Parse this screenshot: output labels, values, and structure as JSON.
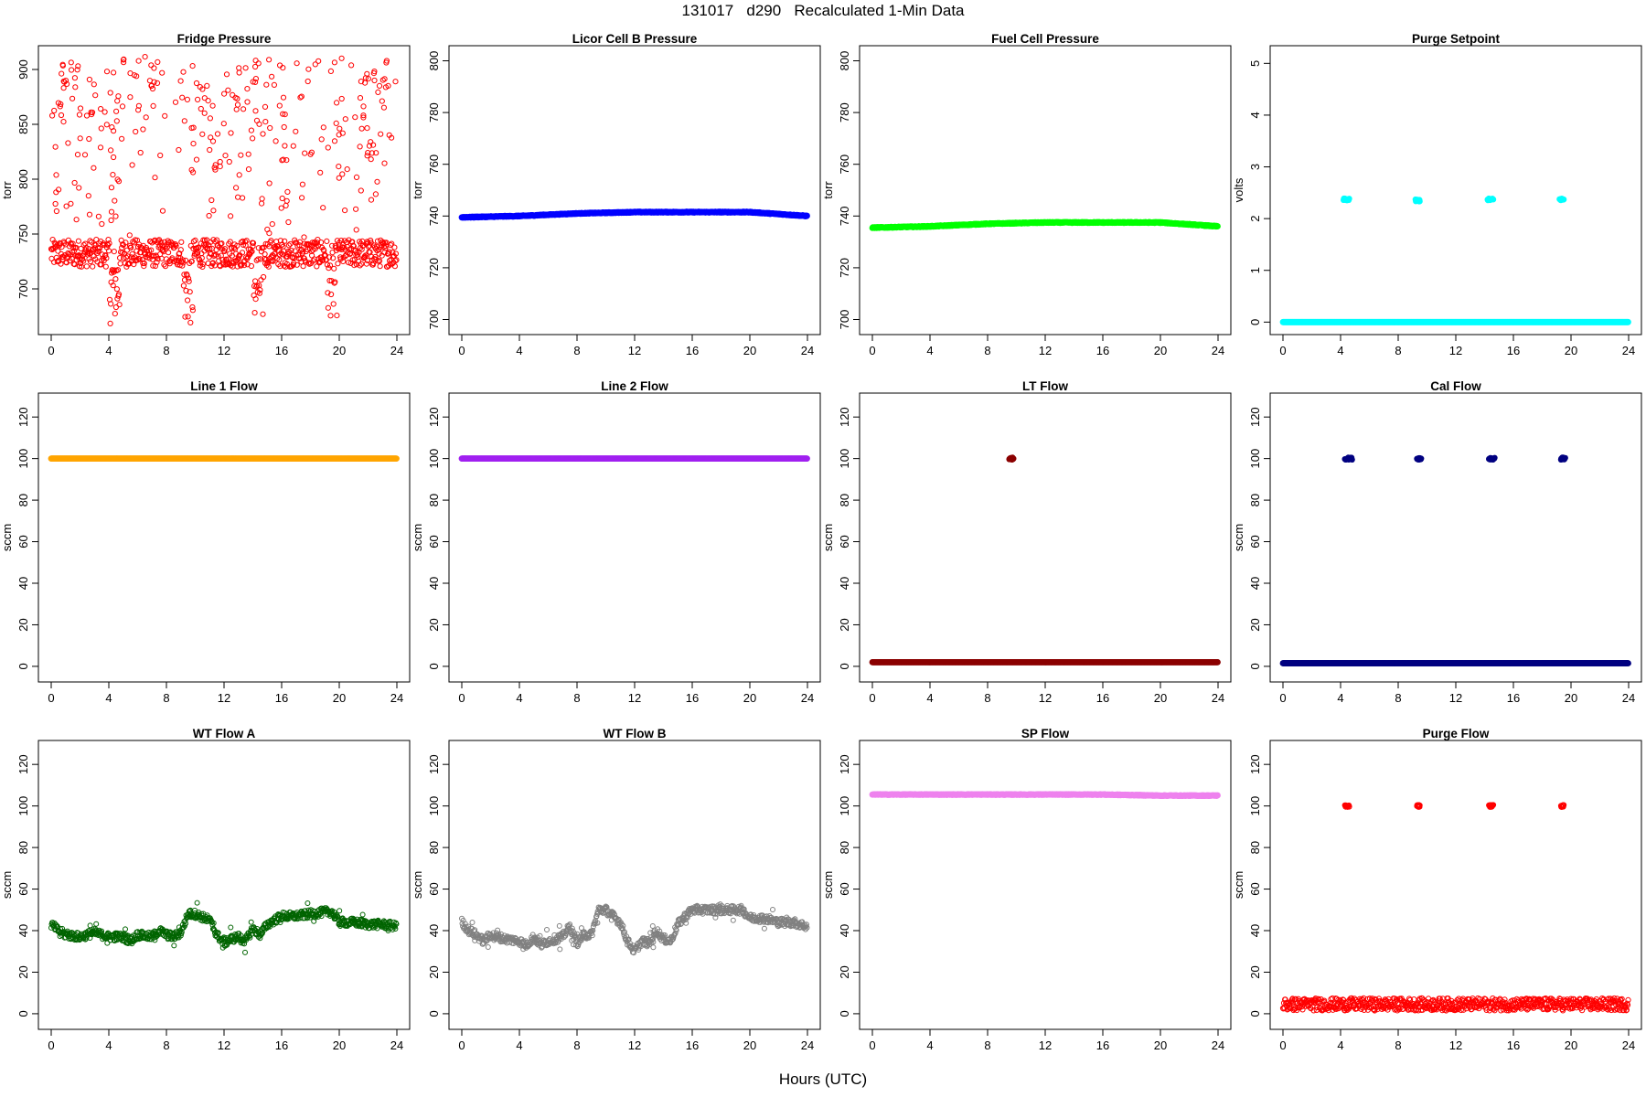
{
  "title": "131017   d290   Recalculated 1-Min Data",
  "xlabel": "Hours (UTC)",
  "chart_data": [
    {
      "type": "scatter",
      "title": "Fridge Pressure",
      "ylabel": "torr",
      "color": "#ff0000",
      "filled": false,
      "xlim": [
        0,
        24
      ],
      "ylim": [
        665,
        915
      ],
      "yticks": [
        700,
        750,
        800,
        850,
        900
      ],
      "xticks": [
        0,
        4,
        8,
        12,
        16,
        20,
        24
      ],
      "description": "cluster 715-745 with dips to ~670 near hours 4.4, 9.5, 14.4, 19.5; scattered points 745-912",
      "series": [
        {
          "baseline_range": [
            715,
            745
          ],
          "dips": [
            {
              "x": 4.4,
              "min": 668
            },
            {
              "x": 9.5,
              "min": 666
            },
            {
              "x": 14.4,
              "min": 668
            },
            {
              "x": 19.5,
              "min": 675
            }
          ],
          "scatter_range": [
            745,
            912
          ]
        }
      ]
    },
    {
      "type": "scatter",
      "title": "Licor Cell B Pressure",
      "ylabel": "torr",
      "color": "#0000ff",
      "filled": true,
      "xlim": [
        0,
        24
      ],
      "ylim": [
        697,
        803
      ],
      "yticks": [
        700,
        720,
        740,
        760,
        780,
        800
      ],
      "xticks": [
        0,
        4,
        8,
        12,
        16,
        20,
        24
      ],
      "series": [
        {
          "x": [
            0,
            4,
            8,
            12,
            16,
            20,
            24
          ],
          "y": [
            739.5,
            740.0,
            741.0,
            741.5,
            741.5,
            741.5,
            740.0
          ]
        }
      ]
    },
    {
      "type": "scatter",
      "title": "Fuel Cell Pressure",
      "ylabel": "torr",
      "color": "#00ff00",
      "filled": true,
      "xlim": [
        0,
        24
      ],
      "ylim": [
        697,
        803
      ],
      "yticks": [
        700,
        720,
        740,
        760,
        780,
        800
      ],
      "xticks": [
        0,
        4,
        8,
        12,
        16,
        20,
        24
      ],
      "series": [
        {
          "x": [
            0,
            4,
            8,
            12,
            16,
            20,
            24
          ],
          "y": [
            735.5,
            736.0,
            737.0,
            737.5,
            737.5,
            737.5,
            736.0
          ]
        }
      ]
    },
    {
      "type": "scatter",
      "title": "Purge Setpoint",
      "ylabel": "volts",
      "color": "#00ffff",
      "filled": true,
      "xlim": [
        0,
        24
      ],
      "ylim": [
        -0.1,
        5.2
      ],
      "yticks": [
        0,
        1,
        2,
        3,
        4,
        5
      ],
      "xticks": [
        0,
        4,
        8,
        12,
        16,
        20,
        24
      ],
      "series": [
        {
          "baseline": 0,
          "spikes": [
            {
              "x0": 4.2,
              "x1": 4.6,
              "y": 2.37
            },
            {
              "x0": 9.2,
              "x1": 9.5,
              "y": 2.35
            },
            {
              "x0": 14.2,
              "x1": 14.6,
              "y": 2.37
            },
            {
              "x0": 19.2,
              "x1": 19.5,
              "y": 2.37
            }
          ]
        }
      ]
    },
    {
      "type": "scatter",
      "title": "Line 1 Flow",
      "ylabel": "sccm",
      "color": "#ffa500",
      "filled": true,
      "xlim": [
        0,
        24
      ],
      "ylim": [
        -4,
        128
      ],
      "yticks": [
        0,
        20,
        40,
        60,
        80,
        100,
        120
      ],
      "xticks": [
        0,
        4,
        8,
        12,
        16,
        20,
        24
      ],
      "series": [
        {
          "baseline": 100
        }
      ]
    },
    {
      "type": "scatter",
      "title": "Line 2 Flow",
      "ylabel": "sccm",
      "color": "#a020f0",
      "filled": true,
      "xlim": [
        0,
        24
      ],
      "ylim": [
        -4,
        128
      ],
      "yticks": [
        0,
        20,
        40,
        60,
        80,
        100,
        120
      ],
      "xticks": [
        0,
        4,
        8,
        12,
        16,
        20,
        24
      ],
      "series": [
        {
          "baseline": 100
        }
      ]
    },
    {
      "type": "scatter",
      "title": "LT Flow",
      "ylabel": "sccm",
      "color": "#8b0000",
      "filled": true,
      "xlim": [
        0,
        24
      ],
      "ylim": [
        -4,
        128
      ],
      "yticks": [
        0,
        20,
        40,
        60,
        80,
        100,
        120
      ],
      "xticks": [
        0,
        4,
        8,
        12,
        16,
        20,
        24
      ],
      "series": [
        {
          "baseline": 2,
          "spikes": [
            {
              "x0": 9.5,
              "x1": 9.8,
              "y": 100
            }
          ]
        }
      ]
    },
    {
      "type": "scatter",
      "title": "Cal Flow",
      "ylabel": "sccm",
      "color": "#000080",
      "filled": true,
      "xlim": [
        0,
        24
      ],
      "ylim": [
        -4,
        128
      ],
      "yticks": [
        0,
        20,
        40,
        60,
        80,
        100,
        120
      ],
      "xticks": [
        0,
        4,
        8,
        12,
        16,
        20,
        24
      ],
      "series": [
        {
          "baseline": 1.5,
          "spikes": [
            {
              "x0": 4.3,
              "x1": 4.8,
              "y": 100
            },
            {
              "x0": 9.3,
              "x1": 9.6,
              "y": 100
            },
            {
              "x0": 14.3,
              "x1": 14.7,
              "y": 100
            },
            {
              "x0": 19.3,
              "x1": 19.6,
              "y": 100
            }
          ]
        }
      ]
    },
    {
      "type": "scatter",
      "title": "WT Flow A",
      "ylabel": "sccm",
      "color": "#006400",
      "filled": false,
      "xlim": [
        0,
        24
      ],
      "ylim": [
        -4,
        128
      ],
      "yticks": [
        0,
        20,
        40,
        60,
        80,
        100,
        120
      ],
      "xticks": [
        0,
        4,
        8,
        12,
        16,
        20,
        24
      ],
      "series": [
        {
          "x": [
            0,
            0.5,
            1,
            2,
            3,
            4,
            5,
            5.5,
            6,
            7,
            7.5,
            8,
            8.5,
            9,
            9.5,
            10,
            11,
            11.5,
            12,
            12.5,
            13,
            13.5,
            14,
            14.5,
            15,
            15.5,
            16,
            17,
            18,
            19,
            19.5,
            20,
            21,
            22,
            23,
            24
          ],
          "y": [
            43,
            40,
            38,
            37,
            39,
            37,
            37,
            35,
            38,
            37,
            40,
            38,
            37,
            39,
            48,
            48,
            45,
            38,
            34,
            36,
            37,
            35,
            41,
            38,
            43,
            45,
            47,
            47,
            48,
            49,
            49,
            44,
            44,
            43,
            43,
            42
          ]
        }
      ]
    },
    {
      "type": "scatter",
      "title": "WT Flow B",
      "ylabel": "sccm",
      "color": "#808080",
      "filled": false,
      "xlim": [
        0,
        24
      ],
      "ylim": [
        -4,
        128
      ],
      "yticks": [
        0,
        20,
        40,
        60,
        80,
        100,
        120
      ],
      "xticks": [
        0,
        4,
        8,
        12,
        16,
        20,
        24
      ],
      "series": [
        {
          "x": [
            0,
            0.5,
            1,
            1.5,
            2,
            3,
            4,
            4.5,
            5,
            5.5,
            6,
            7,
            7.5,
            8,
            8.5,
            9,
            9.5,
            10,
            10.5,
            11,
            11.5,
            12,
            12.5,
            13,
            13.5,
            14,
            14.5,
            15,
            15.5,
            16,
            17,
            18,
            19,
            19.5,
            20,
            21,
            22,
            23,
            24
          ],
          "y": [
            44,
            40,
            38,
            35,
            38,
            36,
            35,
            33,
            37,
            33,
            35,
            37,
            42,
            34,
            38,
            38,
            50,
            50,
            47,
            44,
            35,
            30,
            35,
            34,
            40,
            36,
            35,
            43,
            47,
            50,
            50,
            50,
            50,
            50,
            46,
            46,
            44,
            44,
            42
          ]
        }
      ]
    },
    {
      "type": "scatter",
      "title": "SP Flow",
      "ylabel": "sccm",
      "color": "#ee82ee",
      "filled": true,
      "xlim": [
        0,
        24
      ],
      "ylim": [
        -4,
        128
      ],
      "yticks": [
        0,
        20,
        40,
        60,
        80,
        100,
        120
      ],
      "xticks": [
        0,
        4,
        8,
        12,
        16,
        20,
        24
      ],
      "series": [
        {
          "x": [
            0,
            4,
            8,
            12,
            16,
            20,
            24
          ],
          "y": [
            105.5,
            105.5,
            105.5,
            105.5,
            105.5,
            105,
            105
          ]
        }
      ]
    },
    {
      "type": "scatter",
      "title": "Purge Flow",
      "ylabel": "sccm",
      "color": "#ff0000",
      "filled": false,
      "xlim": [
        0,
        24
      ],
      "ylim": [
        -4,
        128
      ],
      "yticks": [
        0,
        20,
        40,
        60,
        80,
        100,
        120
      ],
      "xticks": [
        0,
        4,
        8,
        12,
        16,
        20,
        24
      ],
      "series": [
        {
          "baseline": 4.5,
          "spikes": [
            {
              "x0": 4.3,
              "x1": 4.6,
              "y": 100
            },
            {
              "x0": 9.3,
              "x1": 9.5,
              "y": 100
            },
            {
              "x0": 14.3,
              "x1": 14.6,
              "y": 100
            },
            {
              "x0": 19.3,
              "x1": 19.5,
              "y": 100
            }
          ]
        }
      ]
    }
  ]
}
